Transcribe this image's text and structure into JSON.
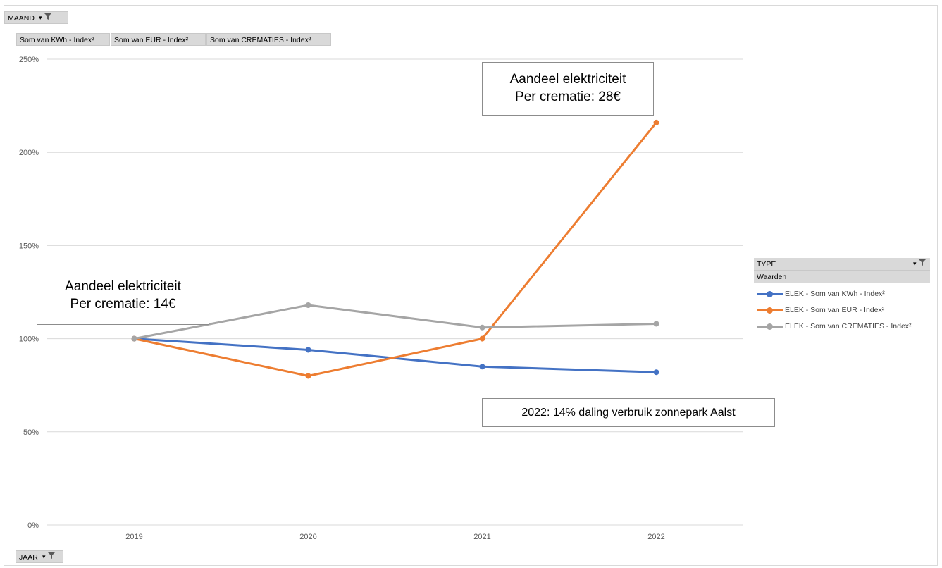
{
  "filters": {
    "report_filter": "MAAND",
    "value_fields": [
      "Som van KWh - Index²",
      "Som van EUR - Index²",
      "Som van CREMATIES - Index²"
    ],
    "axis_field": "JAAR"
  },
  "legend": {
    "header": "TYPE",
    "subheader": "Waarden"
  },
  "annotations": {
    "left_line1": "Aandeel elektriciteit",
    "left_line2": "Per crematie: 14€",
    "top_line1": "Aandeel elektriciteit",
    "top_line2": "Per crematie: 28€",
    "bottom": "2022: 14% daling verbruik zonnepark Aalst"
  },
  "chart_data": {
    "type": "line",
    "categories": [
      "2019",
      "2020",
      "2021",
      "2022"
    ],
    "ylim": [
      0,
      2.5
    ],
    "yticks": [
      "0%",
      "50%",
      "100%",
      "150%",
      "200%",
      "250%"
    ],
    "grid": true,
    "legend_position": "right",
    "series": [
      {
        "name": "ELEK - Som van KWh - Index²",
        "color": "#4472c4",
        "values": [
          1.0,
          0.94,
          0.85,
          0.82
        ]
      },
      {
        "name": "ELEK - Som van EUR - Index²",
        "color": "#ed7d31",
        "values": [
          1.0,
          0.8,
          1.0,
          2.16
        ]
      },
      {
        "name": "ELEK - Som van CREMATIES - Index²",
        "color": "#a5a5a5",
        "values": [
          1.0,
          1.18,
          1.06,
          1.08
        ]
      }
    ]
  }
}
